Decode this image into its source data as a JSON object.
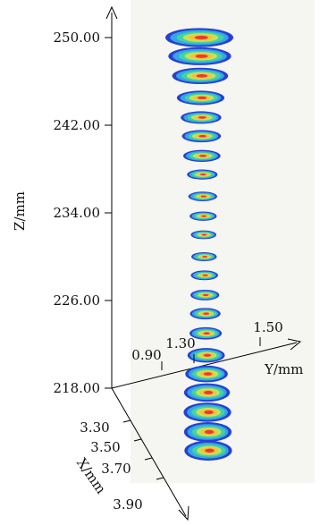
{
  "chart_data": {
    "type": "scatter",
    "z_axis": {
      "label": "Z/mm",
      "ticks": [
        "250.00",
        "242.00",
        "234.00",
        "226.00",
        "218.00"
      ],
      "range": [
        218,
        251.5
      ]
    },
    "y_axis": {
      "label": "Y/mm",
      "ticks": [
        "0.90",
        "1.30",
        "1.50"
      ]
    },
    "x_axis": {
      "label": "X/mm",
      "ticks": [
        "3.30",
        "3.50",
        "3.70",
        "3.90"
      ]
    },
    "slices": [
      {
        "z": 250.0,
        "width": 4.0
      },
      {
        "z": 248.3,
        "width": 3.7
      },
      {
        "z": 246.5,
        "width": 3.3
      },
      {
        "z": 244.5,
        "width": 2.8
      },
      {
        "z": 242.7,
        "width": 2.4
      },
      {
        "z": 241.0,
        "width": 2.3
      },
      {
        "z": 239.2,
        "width": 2.2
      },
      {
        "z": 237.5,
        "width": 1.8
      },
      {
        "z": 235.5,
        "width": 1.7
      },
      {
        "z": 233.7,
        "width": 1.6
      },
      {
        "z": 232.0,
        "width": 1.5
      },
      {
        "z": 230.0,
        "width": 1.5
      },
      {
        "z": 228.3,
        "width": 1.6
      },
      {
        "z": 226.5,
        "width": 1.7
      },
      {
        "z": 224.8,
        "width": 1.8
      },
      {
        "z": 223.0,
        "width": 1.9
      },
      {
        "z": 221.0,
        "width": 2.2
      },
      {
        "z": 219.3,
        "width": 2.5
      },
      {
        "z": 217.6,
        "width": 2.7
      },
      {
        "z": 215.8,
        "width": 2.8
      },
      {
        "z": 214.0,
        "width": 2.8
      },
      {
        "z": 212.3,
        "width": 2.8
      }
    ],
    "colormap": [
      "#2a3fd0",
      "#2fa7e8",
      "#45d2a0",
      "#c8e05a",
      "#f4c23c",
      "#ee3a2c"
    ],
    "grid": false,
    "legend": "none"
  }
}
